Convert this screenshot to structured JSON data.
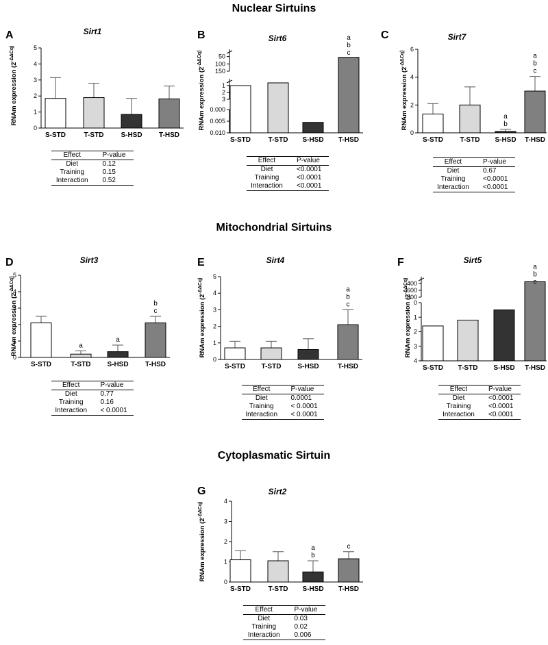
{
  "sections": {
    "nuclear": "Nuclear Sirtuins",
    "mitochondrial": "Mitochondrial Sirtuins",
    "cytoplasmatic": "Cytoplasmatic Sirtuin"
  },
  "table_header": {
    "effect": "Effect",
    "pvalue": "P-value"
  },
  "effect_names": [
    "Diet",
    "Training",
    "Interaction"
  ],
  "colors": {
    "S-STD": "#ffffff",
    "T-STD": "#d9d9d9",
    "S-HSD": "#333333",
    "T-HSD": "#808080"
  },
  "chart_data": [
    {
      "type": "bar",
      "panel": "A",
      "title": "Sirt1",
      "ylabel": "RNAm expression (2^-ΔΔCq)",
      "categories": [
        "S-STD",
        "T-STD",
        "S-HSD",
        "T-HSD"
      ],
      "values": [
        1.85,
        1.9,
        0.85,
        1.82
      ],
      "errors": [
        1.3,
        0.9,
        1.0,
        0.8
      ],
      "ylim": [
        0,
        5
      ],
      "yticks": [
        "0",
        "1",
        "2",
        "3",
        "4",
        "5"
      ],
      "letters": [
        [],
        [],
        [],
        []
      ],
      "pvalues": [
        "0.12",
        "0.15",
        "0.52"
      ]
    },
    {
      "type": "bar",
      "panel": "B",
      "title": "Sirt6",
      "ylabel": "RNAm expression (2^-ΔΔCq)",
      "categories": [
        "S-STD",
        "T-STD",
        "S-HSD",
        "T-HSD"
      ],
      "values": [
        1.0,
        0.6,
        0.0055,
        55
      ],
      "errors": [
        0.9,
        0.6,
        0,
        5
      ],
      "ylim": [
        0,
        150
      ],
      "segments": [
        {
          "range": [
            0,
            0.01
          ],
          "ticks": [
            "0.000",
            "0.005",
            "0.010"
          ]
        },
        {
          "range": [
            0,
            3
          ],
          "ticks": [
            "1",
            "2",
            "3"
          ]
        },
        {
          "range": [
            0,
            150
          ],
          "ticks": [
            "50",
            "100",
            "150"
          ]
        }
      ],
      "letters": [
        [],
        [],
        [],
        [
          "a",
          "b",
          "c"
        ]
      ],
      "pvalues": [
        "<0.0001",
        "<0.0001",
        "<0.0001"
      ]
    },
    {
      "type": "bar",
      "panel": "C",
      "title": "Sirt7",
      "ylabel": "RNAm expression (2^-ΔΔCq)",
      "categories": [
        "S-STD",
        "T-STD",
        "S-HSD",
        "T-HSD"
      ],
      "values": [
        1.35,
        2.0,
        0.1,
        3.0
      ],
      "errors": [
        0.75,
        1.3,
        0.15,
        1.05
      ],
      "ylim": [
        0,
        6
      ],
      "yticks": [
        "0",
        "2",
        "4",
        "6"
      ],
      "letters": [
        [],
        [],
        [
          "a",
          "b"
        ],
        [
          "a",
          "b",
          "c"
        ]
      ],
      "pvalues": [
        "0.67",
        "<0.0001",
        "<0.0001"
      ]
    },
    {
      "type": "bar",
      "panel": "D",
      "title": "Sirt3",
      "ylabel": "RNAm expression (2^-ΔΔCq)",
      "categories": [
        "S-STD",
        "T-STD",
        "S-HSD",
        "T-HSD"
      ],
      "values": [
        2.1,
        0.2,
        0.35,
        2.1
      ],
      "errors": [
        0.4,
        0.2,
        0.4,
        0.4
      ],
      "ylim": [
        0,
        5
      ],
      "yticks": [
        "0",
        "1",
        "2",
        "3",
        "4",
        "5"
      ],
      "letters": [
        [],
        [
          "a"
        ],
        [
          "a"
        ],
        [
          "b",
          "c"
        ]
      ],
      "pvalues": [
        "0.77",
        "0.16",
        "< 0.0001"
      ]
    },
    {
      "type": "bar",
      "panel": "E",
      "title": "Sirt4",
      "ylabel": "RNAm expression (2^-ΔΔCq)",
      "categories": [
        "S-STD",
        "T-STD",
        "S-HSD",
        "T-HSD"
      ],
      "values": [
        0.7,
        0.7,
        0.6,
        2.1
      ],
      "errors": [
        0.4,
        0.4,
        0.65,
        0.9
      ],
      "ylim": [
        0,
        5
      ],
      "yticks": [
        "0",
        "1",
        "2",
        "3",
        "4",
        "5"
      ],
      "letters": [
        [],
        [],
        [],
        [
          "a",
          "b",
          "c"
        ]
      ],
      "pvalues": [
        "0.0001",
        "< 0.0001",
        "< 0.0001"
      ]
    },
    {
      "type": "bar",
      "panel": "F",
      "title": "Sirt5",
      "ylabel": "RNAm expression (2^-ΔΔCq)",
      "categories": [
        "S-STD",
        "T-STD",
        "S-HSD",
        "T-HSD"
      ],
      "values": [
        1.6,
        1.2,
        0.5,
        350
      ],
      "errors": [
        1.9,
        0.5,
        0.4,
        160
      ],
      "ylim": [
        0,
        800
      ],
      "segments": [
        {
          "range": [
            0,
            4
          ],
          "ticks": [
            "0",
            "1",
            "2",
            "3",
            "4"
          ]
        },
        {
          "range": [
            200,
            800
          ],
          "ticks": [
            "400",
            "600",
            "800"
          ]
        }
      ],
      "letters": [
        [],
        [],
        [],
        [
          "a",
          "b",
          "c"
        ]
      ],
      "pvalues": [
        "<0.0001",
        "<0.0001",
        "<0.0001"
      ]
    },
    {
      "type": "bar",
      "panel": "G",
      "title": "Sirt2",
      "ylabel": "RNAm expression (2^-ΔΔCq)",
      "categories": [
        "S-STD",
        "T-STD",
        "S-HSD",
        "T-HSD"
      ],
      "values": [
        1.1,
        1.05,
        0.5,
        1.15
      ],
      "errors": [
        0.45,
        0.45,
        0.55,
        0.35
      ],
      "ylim": [
        0,
        4
      ],
      "yticks": [
        "0",
        "1",
        "2",
        "3",
        "4"
      ],
      "letters": [
        [],
        [],
        [
          "a",
          "b"
        ],
        [
          "c"
        ]
      ],
      "pvalues": [
        "0.03",
        "0.02",
        "0.006"
      ]
    }
  ]
}
